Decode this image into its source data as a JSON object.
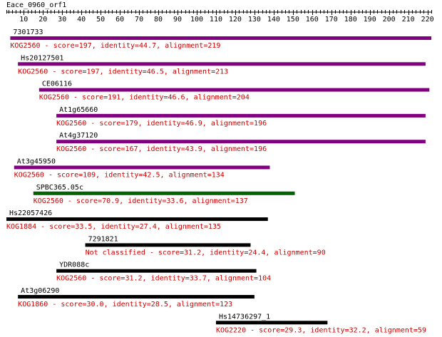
{
  "title": "Eace_0960_orf1",
  "axis": {
    "min": 1,
    "max": 222,
    "ticks": [
      10,
      20,
      30,
      40,
      50,
      60,
      70,
      80,
      90,
      100,
      110,
      120,
      130,
      140,
      150,
      160,
      170,
      180,
      190,
      200,
      210,
      220
    ]
  },
  "colors": {
    "ruler": "#000000",
    "label": "#000000",
    "annotation": "#cc0000"
  },
  "hits": [
    {
      "name": "7301733",
      "desc": "KOG2560 - score=197, identity=44.7, alignment=219",
      "start": 3,
      "end": 222,
      "color": "#800080"
    },
    {
      "name": "Hs20127501",
      "desc": "KOG2560 - score=197, identity=46.5, alignment=213",
      "start": 7,
      "end": 219,
      "color": "#800080"
    },
    {
      "name": "CE06116",
      "desc": "KOG2560 - score=191, identity=46.6, alignment=204",
      "start": 18,
      "end": 221,
      "color": "#800080"
    },
    {
      "name": "At1g65660",
      "desc": "KOG2560 - score=179, identity=46.9, alignment=196",
      "start": 27,
      "end": 219,
      "color": "#800080"
    },
    {
      "name": "At4g37120",
      "desc": "KOG2560 - score=167, identity=43.9, alignment=196",
      "start": 27,
      "end": 219,
      "color": "#800080"
    },
    {
      "name": "At3g45950",
      "desc": "KOG2560 - score=109, identity=42.5, alignment=134",
      "start": 5,
      "end": 138,
      "color": "#800080"
    },
    {
      "name": "SPBC365.05c",
      "desc": "KOG2560 - score=70.9, identity=33.6, alignment=137",
      "start": 15,
      "end": 151,
      "color": "#006400"
    },
    {
      "name": "Hs22057426",
      "desc": "KOG1884 - score=33.5, identity=27.4, alignment=135",
      "start": 1,
      "end": 137,
      "color": "#000000"
    },
    {
      "name": "7291821",
      "desc": "Not classified - score=31.2, identity=24.4, alignment=90",
      "start": 42,
      "end": 128,
      "color": "#000000"
    },
    {
      "name": "YDR088c",
      "desc": "KOG2560 - score=31.2, identity=33.7, alignment=104",
      "start": 27,
      "end": 131,
      "color": "#000000"
    },
    {
      "name": "At3g06290",
      "desc": "KOG1860 - score=30.0, identity=28.5, alignment=123",
      "start": 7,
      "end": 130,
      "color": "#000000"
    },
    {
      "name": "Hs14736297_1",
      "desc": "KOG2220 - score=29.3, identity=32.2, alignment=59",
      "start": 110,
      "end": 168,
      "color": "#000000"
    }
  ]
}
